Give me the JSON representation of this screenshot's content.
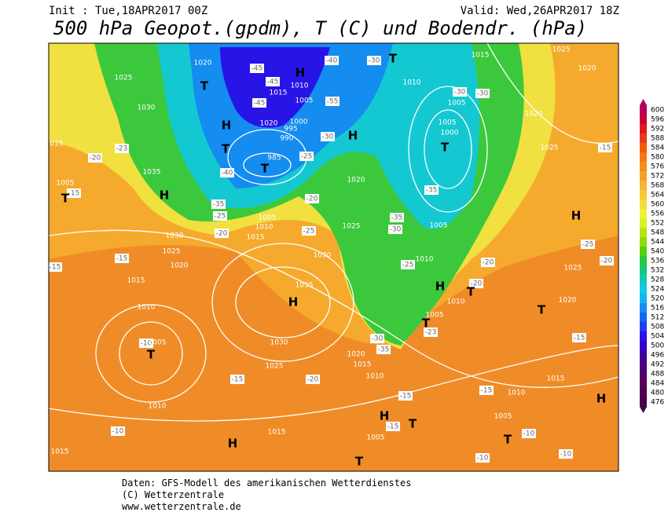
{
  "header": {
    "init": "Init : Tue,18APR2017 00Z",
    "valid": "Valid: Wed,26APR2017 18Z",
    "title": "500 hPa Geopot.(gpdm), T (C) und Bodendr. (hPa)"
  },
  "footer": {
    "source": "Daten: GFS-Modell des amerikanischen Wetterdienstes",
    "copyright": "(C) Wetterzentrale",
    "url": "www.wetterzentrale.de"
  },
  "colorbar": {
    "levels": [
      600,
      596,
      592,
      588,
      584,
      580,
      576,
      572,
      568,
      564,
      560,
      556,
      552,
      548,
      544,
      540,
      536,
      532,
      528,
      524,
      520,
      516,
      512,
      508,
      504,
      500,
      496,
      492,
      488,
      484,
      480,
      476
    ],
    "colors": [
      "#b4005a",
      "#c8003c",
      "#dc1e1e",
      "#e63c14",
      "#f05a0a",
      "#f57814",
      "#f58c1e",
      "#f5a028",
      "#f5b432",
      "#f5c83c",
      "#f5dc3c",
      "#f0f03c",
      "#dcf028",
      "#b4e614",
      "#8cdc0a",
      "#50d20a",
      "#28c83c",
      "#14c878",
      "#14c8b4",
      "#14c8e6",
      "#14b4f0",
      "#148cf0",
      "#1464f0",
      "#1e3cf0",
      "#2814e6",
      "#3200c8",
      "#3c00a0",
      "#460082",
      "#50006e",
      "#5a005a",
      "#500050",
      "#460046"
    ]
  },
  "map": {
    "highs": [
      "H",
      "H",
      "H",
      "H",
      "H",
      "H",
      "H",
      "H",
      "H",
      "H"
    ],
    "lows": [
      "T",
      "T",
      "T",
      "T",
      "T",
      "T",
      "T",
      "T",
      "T",
      "T",
      "T",
      "T",
      "T"
    ],
    "pressure_labels": [
      1020,
      1025,
      1030,
      1035,
      1030,
      1025,
      1020,
      1015,
      1010,
      1005,
      1010,
      1015,
      1025,
      1030,
      1035,
      1030,
      1025,
      1020,
      1015,
      1010,
      1005,
      985,
      990,
      995,
      1000,
      1005,
      1010,
      1015,
      1020,
      1010,
      1005,
      1005,
      1000,
      1005,
      1010,
      1015,
      1020,
      1025,
      1025,
      1020,
      1010,
      1005,
      1020,
      1015,
      1010,
      1005,
      1005,
      1010,
      1015,
      1020,
      1025,
      1015,
      1005,
      1015
    ],
    "temperature_labels": [
      -45,
      -45,
      -45,
      -40,
      -30,
      -55,
      -30,
      -25,
      -20,
      -40,
      -35,
      -25,
      -20,
      -25,
      -30,
      -30,
      -35,
      -35,
      -30,
      -25,
      -20,
      -20,
      -25,
      -20,
      -15,
      -15,
      -23,
      -30,
      -35,
      -15,
      -20,
      -15,
      -15,
      -23,
      -20,
      -15,
      -15,
      -15,
      -10,
      -10,
      -10,
      -10,
      -15,
      -10
    ]
  }
}
